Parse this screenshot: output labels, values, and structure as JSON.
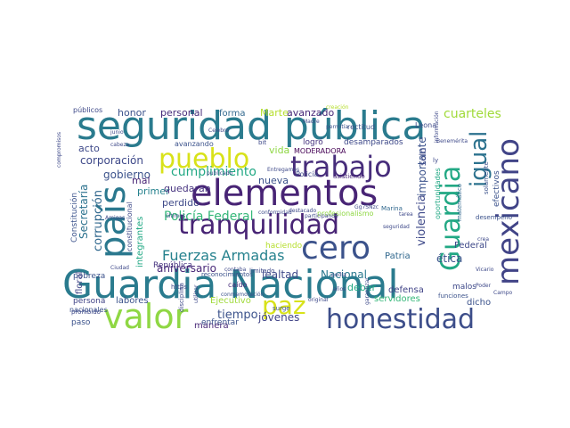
{
  "word_cloud": {
    "words": [
      {
        "text": "seguridad pública",
        "color": "#2a7b8e"
      },
      {
        "text": "Guardia Nacional",
        "color": "#2a7b8e"
      },
      {
        "text": "elementos",
        "color": "#482475"
      },
      {
        "text": "honestidad",
        "color": "#3d4e8a"
      },
      {
        "text": "tranquilidad",
        "color": "#482475"
      },
      {
        "text": "valor",
        "color": "#8fd744"
      },
      {
        "text": "país",
        "color": "#2a788e"
      },
      {
        "text": "trabajo",
        "color": "#472d7b"
      },
      {
        "text": "pueblo",
        "color": "#d8e219"
      },
      {
        "text": "cero",
        "color": "#3b528b"
      },
      {
        "text": "mexicano",
        "color": "#414487"
      },
      {
        "text": "Guardia",
        "color": "#22a884"
      },
      {
        "text": "igual",
        "color": "#2c728e"
      },
      {
        "text": "paz",
        "color": "#d8e219"
      },
      {
        "text": "Fuerzas Armadas",
        "color": "#26828e"
      },
      {
        "text": "Policía Federal",
        "color": "#35b779"
      },
      {
        "text": "cumplimiento",
        "color": "#22a884"
      },
      {
        "text": "cuarteles",
        "color": "#a0da39"
      },
      {
        "text": "corrupción",
        "color": "#31688e"
      },
      {
        "text": "corporación",
        "color": "#3e4989"
      },
      {
        "text": "gobierno",
        "color": "#3b528b"
      },
      {
        "text": "tiempo",
        "color": "#3b528b"
      },
      {
        "text": "jóvenes",
        "color": "#414487"
      },
      {
        "text": "violencia",
        "color": "#3e4989"
      },
      {
        "text": "Secretaría",
        "color": "#2c728e"
      },
      {
        "text": "importante",
        "color": "#3b528b"
      },
      {
        "text": "lealtad",
        "color": "#3e4989"
      },
      {
        "text": "Nacional",
        "color": "#2a788e"
      },
      {
        "text": "aniversario",
        "color": "#482878"
      },
      {
        "text": "honor",
        "color": "#3b528b"
      },
      {
        "text": "personal",
        "color": "#472d7b"
      },
      {
        "text": "forma",
        "color": "#31688e"
      },
      {
        "text": "Marte",
        "color": "#b5de2b"
      },
      {
        "text": "avanzado",
        "color": "#482878"
      },
      {
        "text": "acto",
        "color": "#3e4989"
      },
      {
        "text": "vida",
        "color": "#8fd744"
      },
      {
        "text": "nueva",
        "color": "#3b528b"
      },
      {
        "text": "primer",
        "color": "#26828e"
      },
      {
        "text": "mal",
        "color": "#482475"
      },
      {
        "text": "perdido",
        "color": "#3e4989"
      },
      {
        "text": "quedaran",
        "color": "#46337f"
      },
      {
        "text": "solo",
        "color": "#3e4989"
      },
      {
        "text": "ética",
        "color": "#3b528b"
      },
      {
        "text": "Patria",
        "color": "#31688e"
      },
      {
        "text": "Federal",
        "color": "#3e4989"
      },
      {
        "text": "defensa",
        "color": "#414487"
      },
      {
        "text": "deber",
        "color": "#22a884"
      },
      {
        "text": "servidores",
        "color": "#35b779"
      },
      {
        "text": "labores",
        "color": "#3b528b"
      },
      {
        "text": "Ejecutivo",
        "color": "#9fda3a"
      },
      {
        "text": "manera",
        "color": "#482878"
      },
      {
        "text": "caído",
        "color": "#472d7b"
      },
      {
        "text": "persona",
        "color": "#414487"
      },
      {
        "text": "dicho",
        "color": "#3b528b"
      },
      {
        "text": "malos",
        "color": "#3e4989"
      },
      {
        "text": "efectivos",
        "color": "#3b528b"
      },
      {
        "text": "haciendo",
        "color": "#b5de2b"
      },
      {
        "text": "públicos",
        "color": "#3e4989"
      },
      {
        "text": "República",
        "color": "#46337f"
      },
      {
        "text": "pobreza",
        "color": "#3b528b"
      },
      {
        "text": "floral",
        "color": "#414487"
      },
      {
        "text": "integrantes",
        "color": "#22a884"
      },
      {
        "text": "Constitución",
        "color": "#3b528b"
      },
      {
        "text": "constitucional",
        "color": "#3e4989"
      },
      {
        "text": "logró",
        "color": "#46337f"
      },
      {
        "text": "desamparados",
        "color": "#3e4989"
      },
      {
        "text": "rectitud",
        "color": "#3b528b"
      },
      {
        "text": "MODERADORA",
        "color": "#440154"
      },
      {
        "text": "Marina",
        "color": "#31688e"
      },
      {
        "text": "Policía",
        "color": "#3e4989"
      },
      {
        "text": "asistiendo",
        "color": "#482878"
      },
      {
        "text": "profesionalismo",
        "color": "#8fd744"
      },
      {
        "text": "oportunidades",
        "color": "#22a884"
      },
      {
        "text": "nacionales",
        "color": "#3b528b"
      },
      {
        "text": "paso",
        "color": "#3b528b"
      },
      {
        "text": "prohibido",
        "color": "#3e4989"
      },
      {
        "text": "enfrentar",
        "color": "#3b528b"
      },
      {
        "text": "surge",
        "color": "#3b528b"
      },
      {
        "text": "https",
        "color": "#3e4989"
      },
      {
        "text": "matemático",
        "color": "#31688e"
      },
      {
        "text": "solamente",
        "color": "#3b528b"
      },
      {
        "text": "Leona",
        "color": "#3e4989"
      },
      {
        "text": "Vicario",
        "color": "#3e4989"
      },
      {
        "text": "Campo",
        "color": "#3e4989"
      },
      {
        "text": "Poder",
        "color": "#3e4989"
      },
      {
        "text": "funciones",
        "color": "#3b528b"
      },
      {
        "text": "desempeño",
        "color": "#3b528b"
      },
      {
        "text": "tarea",
        "color": "#3e4989"
      },
      {
        "text": "Madre",
        "color": "#3e4989"
      },
      {
        "text": "permitía",
        "color": "#3b528b"
      },
      {
        "text": "creación",
        "color": "#b5de2b"
      },
      {
        "text": "Entregamos",
        "color": "#3e4989"
      },
      {
        "text": "publicado",
        "color": "#3e4989"
      },
      {
        "text": "avanzando",
        "color": "#3b528b"
      },
      {
        "text": "reconocimientos",
        "color": "#3b528b"
      },
      {
        "text": "conmemoración",
        "color": "#3b528b"
      },
      {
        "text": "limitado",
        "color": "#3e4989"
      },
      {
        "text": "contaba",
        "color": "#3e4989"
      },
      {
        "text": "conformidad",
        "color": "#3e4989"
      },
      {
        "text": "participando",
        "color": "#3e4989"
      },
      {
        "text": "destacado",
        "color": "#3e4989"
      },
      {
        "text": "compromisos",
        "color": "#3e4989"
      },
      {
        "text": "garantizar",
        "color": "#3e4989"
      },
      {
        "text": "original",
        "color": "#3e4989"
      },
      {
        "text": "utilizar",
        "color": "#3e4989"
      },
      {
        "text": "disciplina",
        "color": "#3e4989"
      },
      {
        "text": "últimos",
        "color": "#3e4989"
      },
      {
        "text": "Amigas",
        "color": "#3e4989"
      },
      {
        "text": "Ciudad",
        "color": "#3e4989"
      },
      {
        "text": "cabeza",
        "color": "#3e4989"
      },
      {
        "text": "podía",
        "color": "#3e4989"
      },
      {
        "text": "años",
        "color": "#3e4989"
      },
      {
        "text": "información",
        "color": "#3e4989"
      },
      {
        "text": "Benemérita",
        "color": "#3e4989"
      },
      {
        "text": "crea",
        "color": "#3e4989"
      },
      {
        "text": "seguridad",
        "color": "#3e4989"
      },
      {
        "text": "ly",
        "color": "#3e4989"
      },
      {
        "text": "bit",
        "color": "#3e4989"
      },
      {
        "text": "Celebro",
        "color": "#3e4989"
      },
      {
        "text": "junio",
        "color": "#3e4989"
      },
      {
        "text": "Gg7SNzc",
        "color": "#3e4989"
      }
    ]
  }
}
